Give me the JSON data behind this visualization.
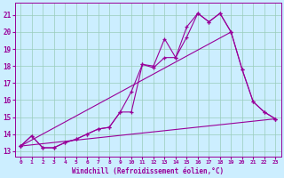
{
  "xlabel": "Windchill (Refroidissement éolien,°C)",
  "bg_color": "#cceeff",
  "line_color": "#990099",
  "grid_color": "#99ccbb",
  "xlim": [
    -0.5,
    23.5
  ],
  "ylim": [
    12.7,
    21.7
  ],
  "yticks": [
    13,
    14,
    15,
    16,
    17,
    18,
    19,
    20,
    21
  ],
  "xticks": [
    0,
    1,
    2,
    3,
    4,
    5,
    6,
    7,
    8,
    9,
    10,
    11,
    12,
    13,
    14,
    15,
    16,
    17,
    18,
    19,
    20,
    21,
    22,
    23
  ],
  "series": [
    {
      "x": [
        0,
        1,
        2,
        3,
        4,
        5,
        6,
        7,
        8,
        9,
        10,
        11,
        12,
        13,
        14,
        15,
        16,
        17,
        18,
        19,
        20,
        21,
        22,
        23
      ],
      "y": [
        13.3,
        13.9,
        13.2,
        13.2,
        13.5,
        13.7,
        14.0,
        14.3,
        14.4,
        15.3,
        16.5,
        18.1,
        18.0,
        19.6,
        18.5,
        20.3,
        21.1,
        20.6,
        21.1,
        20.0,
        17.8,
        15.9,
        15.3,
        14.9
      ]
    },
    {
      "x": [
        0,
        1,
        2,
        3,
        4,
        5,
        6,
        7,
        8,
        9,
        10,
        11,
        12,
        13,
        14,
        15,
        16,
        17,
        18,
        19,
        20,
        21,
        22,
        23
      ],
      "y": [
        13.3,
        13.9,
        13.2,
        13.2,
        13.5,
        13.7,
        14.0,
        14.3,
        14.4,
        15.3,
        15.3,
        18.1,
        17.9,
        18.5,
        18.5,
        19.7,
        21.1,
        20.6,
        21.1,
        20.0,
        17.8,
        15.9,
        15.3,
        14.9
      ]
    },
    {
      "x": [
        0,
        19
      ],
      "y": [
        13.3,
        20.0
      ]
    },
    {
      "x": [
        0,
        23
      ],
      "y": [
        13.3,
        14.9
      ]
    }
  ]
}
